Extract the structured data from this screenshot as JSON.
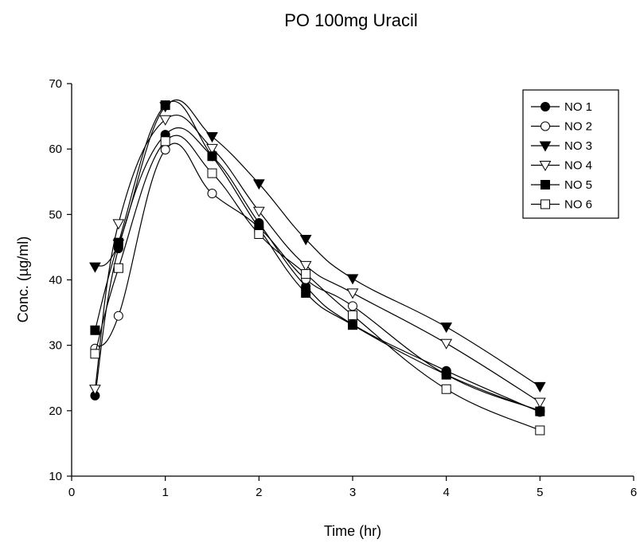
{
  "chart_data": {
    "type": "line",
    "title": "PO 100mg Uracil",
    "xlabel": "Time (hr)",
    "ylabel": "Conc. (µg/ml)",
    "xlim": [
      0,
      6
    ],
    "ylim": [
      10,
      70
    ],
    "xticks": [
      "0",
      "1",
      "2",
      "3",
      "4",
      "5",
      "6"
    ],
    "yticks": [
      "10",
      "20",
      "30",
      "40",
      "50",
      "60",
      "70"
    ],
    "grid": false,
    "legend_position": "top-right",
    "x": [
      0.25,
      0.5,
      1,
      1.5,
      2,
      2.5,
      3,
      4,
      5
    ],
    "series": [
      {
        "name": "NO 1",
        "marker": "filled-circle",
        "values": [
          22.3,
          44.8,
          62.2,
          58.9,
          48.7,
          39.0,
          33.2,
          26.1,
          19.8
        ]
      },
      {
        "name": "NO 2",
        "marker": "open-circle",
        "values": [
          29.5,
          34.5,
          59.9,
          53.2,
          48.0,
          40.1,
          36.0,
          25.5,
          20.0
        ]
      },
      {
        "name": "NO 3",
        "marker": "filled-triangle-down",
        "values": [
          42.0,
          45.5,
          66.5,
          61.9,
          54.7,
          46.2,
          40.2,
          32.8,
          23.7
        ]
      },
      {
        "name": "NO 4",
        "marker": "open-triangle-down",
        "values": [
          23.3,
          48.6,
          64.5,
          60.1,
          50.5,
          42.2,
          38.0,
          30.3,
          21.3
        ]
      },
      {
        "name": "NO 5",
        "marker": "filled-square",
        "values": [
          32.3,
          45.7,
          66.7,
          58.9,
          47.9,
          38.0,
          33.1,
          25.5,
          19.9
        ]
      },
      {
        "name": "NO 6",
        "marker": "open-square",
        "values": [
          28.7,
          41.8,
          61.2,
          56.3,
          47.0,
          40.9,
          34.6,
          23.3,
          17.0
        ]
      }
    ]
  }
}
